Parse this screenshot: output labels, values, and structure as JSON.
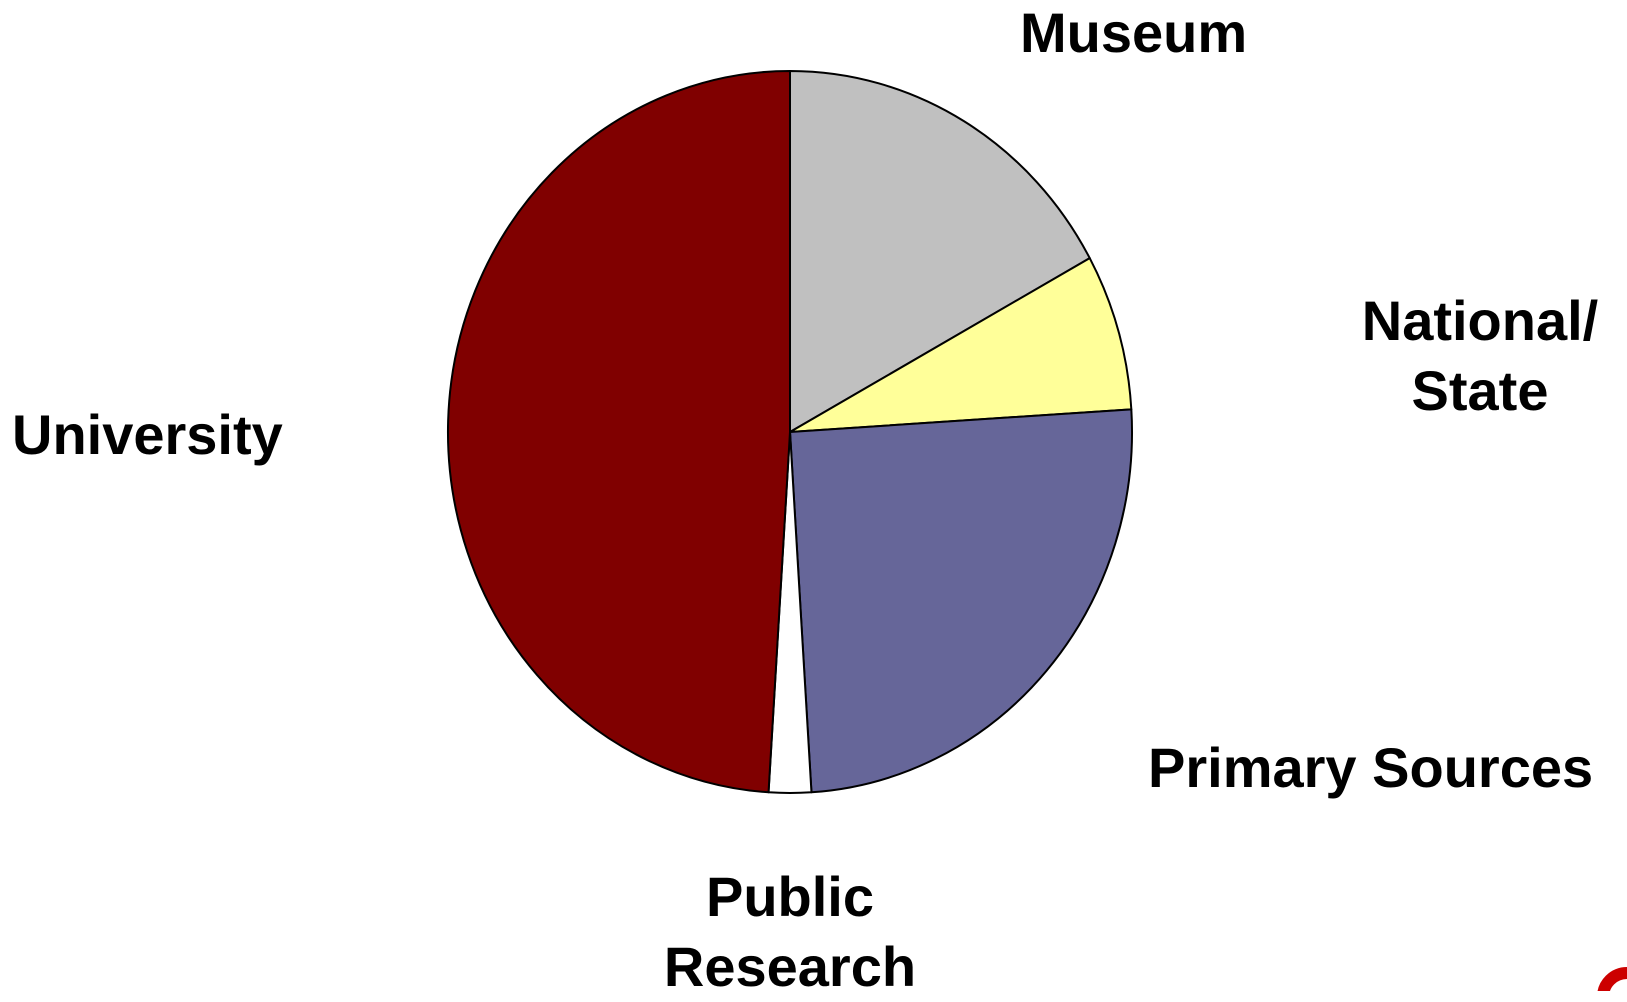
{
  "chart_data": {
    "type": "pie",
    "title": "",
    "start_angle_deg": 0,
    "direction": "clockwise",
    "slices": [
      {
        "label": "Museum",
        "value": 17,
        "color": "#c0c0c0"
      },
      {
        "label": "National/ State",
        "value": 7,
        "color": "#ffff99"
      },
      {
        "label": "Primary Sources",
        "value": 25,
        "color": "#666699"
      },
      {
        "label": "Public Research",
        "value": 2,
        "color": "#ffffff"
      },
      {
        "label": "University",
        "value": 49,
        "color": "#800000"
      }
    ],
    "slice_outline_color": "#000000"
  },
  "labels": {
    "museum": [
      "Museum"
    ],
    "national": [
      "National/",
      "State"
    ],
    "primary": [
      "Primary Sources"
    ],
    "public": [
      "Public",
      "Research"
    ],
    "university": [
      "University"
    ]
  },
  "logo": {
    "icon": "red-circle-logo-icon",
    "color": "#cc0000"
  }
}
